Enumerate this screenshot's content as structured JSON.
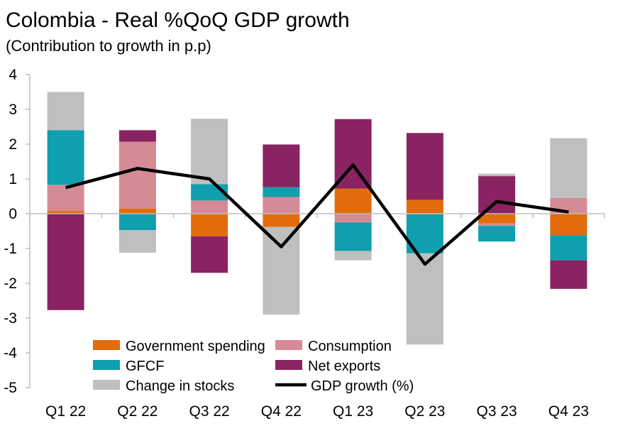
{
  "chart_data": {
    "type": "bar",
    "stacked": true,
    "title": "Colombia - Real %QoQ GDP growth",
    "subtitle": "(Contribution to growth in p.p)",
    "categories": [
      "Q1 22",
      "Q2 22",
      "Q3 22",
      "Q4 22",
      "Q1 23",
      "Q2 23",
      "Q3 23",
      "Q4 23"
    ],
    "ylim": [
      -5,
      4
    ],
    "yticks": [
      "4",
      "3",
      "2",
      "1",
      "0",
      "-1",
      "-2",
      "-3",
      "-4",
      "-5"
    ],
    "ytick_values": [
      4,
      3,
      2,
      1,
      0,
      -1,
      -2,
      -3,
      -4,
      -5
    ],
    "series": [
      {
        "name": "Government spending",
        "kind": "bar",
        "color": "#E36C0A",
        "values": [
          0.08,
          0.15,
          -0.65,
          -0.38,
          0.72,
          0.4,
          -0.28,
          -0.62
        ]
      },
      {
        "name": "Consumption",
        "kind": "bar",
        "color": "#D68A96",
        "values": [
          0.75,
          1.92,
          0.38,
          0.48,
          -0.25,
          -0.02,
          -0.07,
          0.45
        ]
      },
      {
        "name": "GFCF",
        "kind": "bar",
        "color": "#0F9FAF",
        "values": [
          1.57,
          -0.47,
          0.47,
          0.28,
          -0.82,
          -1.12,
          -0.45,
          -0.72
        ]
      },
      {
        "name": "Net exports",
        "kind": "bar",
        "color": "#8A2361",
        "values": [
          -2.77,
          0.33,
          -1.05,
          1.23,
          2.0,
          1.92,
          1.08,
          -0.82
        ]
      },
      {
        "name": "Change in stocks",
        "kind": "bar",
        "color": "#BFBFBF",
        "values": [
          1.1,
          -0.65,
          1.88,
          -2.52,
          -0.27,
          -2.62,
          0.07,
          1.72
        ]
      }
    ],
    "line": {
      "name": "GDP growth (%)",
      "color": "#000000",
      "values": [
        0.75,
        1.3,
        1.0,
        -0.95,
        1.4,
        -1.45,
        0.35,
        0.05
      ]
    },
    "legend_position": "bottom-center",
    "grid": false
  }
}
